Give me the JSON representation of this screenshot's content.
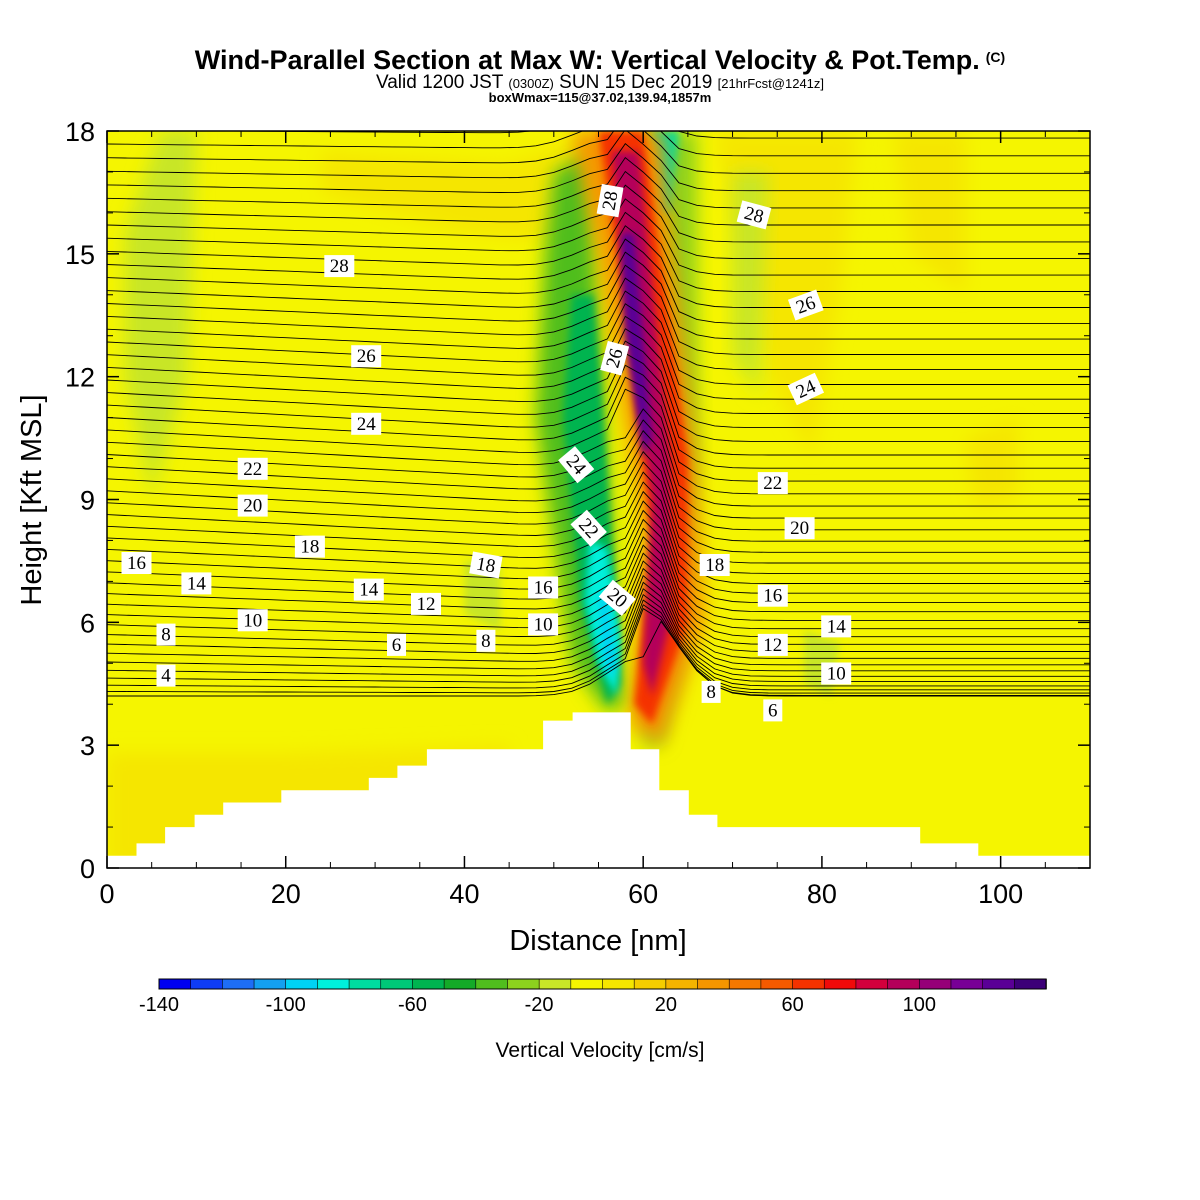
{
  "header": {
    "title": "Wind-Parallel Section at Max W: Vertical Velocity & Pot.Temp.",
    "copyright": "(C)",
    "valid_prefix": "Valid 1200 JST",
    "valid_utc": "(0300Z)",
    "valid_date": "SUN 15 Dec 2019",
    "forecast_info": "[21hrFcst@1241z]",
    "boxwmax": "boxWmax=115@37.02,139.94,1857m"
  },
  "chart_data": {
    "type": "heatmap",
    "xlabel": "Distance [nm]",
    "ylabel": "Height [Kft MSL]",
    "xlim": [
      0,
      110
    ],
    "ylim": [
      0,
      18
    ],
    "xticks": [
      0,
      20,
      40,
      60,
      80,
      100
    ],
    "yticks": [
      0,
      3,
      6,
      9,
      12,
      15,
      18
    ],
    "colorbar": {
      "label": "Vertical Velocity [cm/s]",
      "range": [
        -140,
        140
      ],
      "step": 10,
      "tick_values": [
        -140,
        -100,
        -60,
        -20,
        20,
        60,
        100
      ],
      "tick_labels": [
        "-140",
        "-100",
        "-60",
        "-20",
        "20",
        "60",
        "100"
      ],
      "colors": [
        "#0000f0",
        "#0f3cf5",
        "#1e6ef5",
        "#14a0f0",
        "#00d2f5",
        "#00f0dc",
        "#00dca0",
        "#00c878",
        "#00b450",
        "#14aa28",
        "#50be1e",
        "#8cd21e",
        "#c8e628",
        "#f5f500",
        "#f5e600",
        "#f5cd00",
        "#f5b400",
        "#f59600",
        "#f57800",
        "#f55a00",
        "#f53200",
        "#f00a0a",
        "#d2003c",
        "#b4005a",
        "#960078",
        "#780096",
        "#5a0096",
        "#3c0078"
      ]
    },
    "theta_contours": {
      "description": "Potential temperature contours (black lines)",
      "levels": [
        4,
        6,
        8,
        10,
        12,
        14,
        16,
        18,
        20,
        22,
        24,
        26,
        28
      ],
      "labels": [
        {
          "text": "4",
          "x": 6.6,
          "y": 4.7,
          "rot": 0
        },
        {
          "text": "8",
          "x": 6.6,
          "y": 5.7,
          "rot": 0
        },
        {
          "text": "10",
          "x": 16.3,
          "y": 6.05,
          "rot": 0
        },
        {
          "text": "14",
          "x": 10,
          "y": 6.95,
          "rot": 0
        },
        {
          "text": "16",
          "x": 3.3,
          "y": 7.45,
          "rot": 0
        },
        {
          "text": "18",
          "x": 22.7,
          "y": 7.85,
          "rot": 0
        },
        {
          "text": "20",
          "x": 16.3,
          "y": 8.85,
          "rot": 0
        },
        {
          "text": "22",
          "x": 16.3,
          "y": 9.75,
          "rot": 0
        },
        {
          "text": "24",
          "x": 29,
          "y": 10.85,
          "rot": 0
        },
        {
          "text": "26",
          "x": 29,
          "y": 12.5,
          "rot": 0
        },
        {
          "text": "28",
          "x": 26,
          "y": 14.7,
          "rot": 0
        },
        {
          "text": "6",
          "x": 32.4,
          "y": 5.45,
          "rot": 0
        },
        {
          "text": "14",
          "x": 29.3,
          "y": 6.8,
          "rot": 0
        },
        {
          "text": "12",
          "x": 35.7,
          "y": 6.45,
          "rot": 0
        },
        {
          "text": "8",
          "x": 42.4,
          "y": 5.55,
          "rot": 0
        },
        {
          "text": "18",
          "x": 42.4,
          "y": 7.4,
          "rot": 10
        },
        {
          "text": "16",
          "x": 48.8,
          "y": 6.85,
          "rot": 0
        },
        {
          "text": "10",
          "x": 48.8,
          "y": 5.95,
          "rot": 0
        },
        {
          "text": "20",
          "x": 57.1,
          "y": 6.6,
          "rot": 40
        },
        {
          "text": "22",
          "x": 53.9,
          "y": 8.3,
          "rot": 48
        },
        {
          "text": "24",
          "x": 52.5,
          "y": 9.85,
          "rot": 50
        },
        {
          "text": "26",
          "x": 56.8,
          "y": 12.45,
          "rot": -75
        },
        {
          "text": "28",
          "x": 56.3,
          "y": 16.3,
          "rot": -80
        },
        {
          "text": "28",
          "x": 72.4,
          "y": 15.95,
          "rot": 15
        },
        {
          "text": "26",
          "x": 78.2,
          "y": 13.75,
          "rot": -20
        },
        {
          "text": "24",
          "x": 78.2,
          "y": 11.7,
          "rot": -25
        },
        {
          "text": "22",
          "x": 74.5,
          "y": 9.4,
          "rot": 0
        },
        {
          "text": "20",
          "x": 77.5,
          "y": 8.3,
          "rot": 0
        },
        {
          "text": "18",
          "x": 68,
          "y": 7.4,
          "rot": 0
        },
        {
          "text": "16",
          "x": 74.5,
          "y": 6.65,
          "rot": 0
        },
        {
          "text": "14",
          "x": 81.6,
          "y": 5.9,
          "rot": 0
        },
        {
          "text": "12",
          "x": 74.5,
          "y": 5.45,
          "rot": 0
        },
        {
          "text": "10",
          "x": 81.6,
          "y": 4.75,
          "rot": 0
        },
        {
          "text": "8",
          "x": 67.6,
          "y": 4.3,
          "rot": 0
        },
        {
          "text": "6",
          "x": 74.5,
          "y": 3.85,
          "rot": 0
        }
      ]
    },
    "terrain": {
      "description": "Terrain profile (white, masked)",
      "distance_nm": [
        0,
        3.3,
        3.3,
        6.5,
        6.5,
        9.8,
        9.8,
        13,
        13,
        19.5,
        19.5,
        29.3,
        29.3,
        32.5,
        32.5,
        35.8,
        35.8,
        48.8,
        48.8,
        52.1,
        52.1,
        58.6,
        58.6,
        61.8,
        61.8,
        65.1,
        65.1,
        68.3,
        68.3,
        91,
        91,
        97.5,
        97.5,
        110
      ],
      "height_kft": [
        0.3,
        0.3,
        0.6,
        0.6,
        1.0,
        1.0,
        1.3,
        1.3,
        1.6,
        1.6,
        1.9,
        1.9,
        2.2,
        2.2,
        2.5,
        2.5,
        2.9,
        2.9,
        3.6,
        3.6,
        3.8,
        3.8,
        2.9,
        2.9,
        1.9,
        1.9,
        1.3,
        1.3,
        1.0,
        1.0,
        0.6,
        0.6,
        0.3,
        0.3
      ]
    },
    "features": {
      "updraft_core": {
        "x_nm": 58,
        "y_kft_range": [
          4,
          18
        ],
        "max_w_cm_s": 115
      },
      "downdraft_core": {
        "x_nm": 55,
        "y_kft_range": [
          4.5,
          7.5
        ],
        "min_w_cm_s": -100
      }
    }
  }
}
